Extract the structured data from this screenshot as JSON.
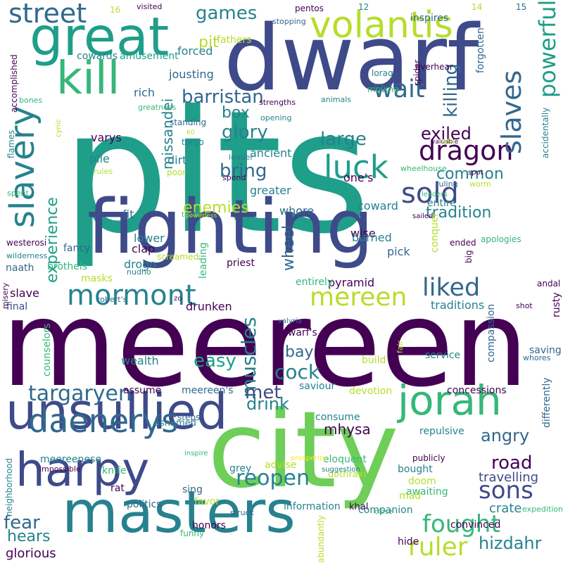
{
  "wordcloud": {
    "background": "#ffffff",
    "palette": [
      "#440154",
      "#3e4a89",
      "#31688e",
      "#26828e",
      "#1f9e89",
      "#35b779",
      "#6ece58",
      "#b5de2b",
      "#fde725"
    ],
    "words": [
      {
        "text": "pits",
        "color": "#1f9e89"
      },
      {
        "text": "meereen",
        "color": "#440154"
      },
      {
        "text": "dwarf",
        "color": "#3e4a89"
      },
      {
        "text": "fighting",
        "color": "#3e4a89"
      },
      {
        "text": "city",
        "color": "#6ece58"
      },
      {
        "text": "great",
        "color": "#1f9e89"
      },
      {
        "text": "masters",
        "color": "#26828e"
      },
      {
        "text": "unsullied",
        "color": "#3e4a89"
      },
      {
        "text": "harpy",
        "color": "#3e4a89"
      },
      {
        "text": "jorah",
        "color": "#35b779"
      },
      {
        "text": "kill",
        "color": "#35b779"
      },
      {
        "text": "slavery",
        "color": "#26828e"
      },
      {
        "text": "volantis",
        "color": "#b5de2b"
      },
      {
        "text": "daenerys",
        "color": "#31688e"
      },
      {
        "text": "mormont",
        "color": "#26828e"
      },
      {
        "text": "street",
        "color": "#31688e"
      },
      {
        "text": "luck",
        "color": "#1f9e89"
      },
      {
        "text": "sold",
        "color": "#3e4a89"
      },
      {
        "text": "dragon",
        "color": "#440154"
      },
      {
        "text": "slaves",
        "color": "#31688e"
      },
      {
        "text": "powerful",
        "color": "#1f9e89"
      },
      {
        "text": "wait",
        "color": "#31688e"
      },
      {
        "text": "mereen",
        "color": "#b5de2b"
      },
      {
        "text": "liked",
        "color": "#31688e"
      },
      {
        "text": "ruler",
        "color": "#b5de2b"
      },
      {
        "text": "fought",
        "color": "#35b779"
      },
      {
        "text": "sons",
        "color": "#3e4a89"
      },
      {
        "text": "targaryen",
        "color": "#31688e"
      },
      {
        "text": "muscles",
        "color": "#26828e"
      },
      {
        "text": "reopen",
        "color": "#26828e"
      },
      {
        "text": "barristan",
        "color": "#31688e"
      },
      {
        "text": "games",
        "color": "#26828e"
      },
      {
        "text": "killing",
        "color": "#31688e"
      },
      {
        "text": "exiled",
        "color": "#440154"
      },
      {
        "text": "glory",
        "color": "#26828e"
      },
      {
        "text": "large",
        "color": "#26828e"
      },
      {
        "text": "bring",
        "color": "#31688e"
      },
      {
        "text": "common",
        "color": "#26828e"
      },
      {
        "text": "tradition",
        "color": "#26828e"
      },
      {
        "text": "enemies",
        "color": "#b5de2b"
      },
      {
        "text": "missandei",
        "color": "#26828e"
      },
      {
        "text": "experience",
        "color": "#1f9e89"
      },
      {
        "text": "angry",
        "color": "#31688e"
      },
      {
        "text": "road",
        "color": "#440154"
      },
      {
        "text": "cock",
        "color": "#26828e"
      },
      {
        "text": "drink",
        "color": "#26828e"
      },
      {
        "text": "easy",
        "color": "#1f9e89"
      },
      {
        "text": "met",
        "color": "#3e4a89"
      },
      {
        "text": "fear",
        "color": "#31688e"
      },
      {
        "text": "hizdahr",
        "color": "#26828e"
      },
      {
        "text": "wheel",
        "color": "#31688e"
      },
      {
        "text": "box",
        "color": "#26828e"
      },
      {
        "text": "pit",
        "color": "#b5de2b"
      },
      {
        "text": "bay",
        "color": "#31688e"
      },
      {
        "text": "hears",
        "color": "#26828e"
      },
      {
        "text": "glorious",
        "color": "#440154"
      },
      {
        "text": "travelling",
        "color": "#3e4a89"
      },
      {
        "text": "crate",
        "color": "#26828e"
      },
      {
        "text": "mhysa",
        "color": "#440154"
      },
      {
        "text": "rich",
        "color": "#31688e"
      },
      {
        "text": "forced",
        "color": "#26828e"
      },
      {
        "text": "jousting",
        "color": "#31688e"
      },
      {
        "text": "cowards",
        "color": "#26828e"
      },
      {
        "text": "amusement",
        "color": "#1f9e89"
      },
      {
        "text": "fathers",
        "color": "#b5de2b"
      },
      {
        "text": "stopping",
        "color": "#31688e"
      },
      {
        "text": "inspires",
        "color": "#31688e"
      },
      {
        "text": "forgotten",
        "color": "#31688e"
      },
      {
        "text": "varys",
        "color": "#440154"
      },
      {
        "text": "pile",
        "color": "#26828e"
      },
      {
        "text": "ancient",
        "color": "#26828e"
      },
      {
        "text": "dirt",
        "color": "#26828e"
      },
      {
        "text": "one's",
        "color": "#440154"
      },
      {
        "text": "greater",
        "color": "#26828e"
      },
      {
        "text": "whore",
        "color": "#31688e"
      },
      {
        "text": "coward",
        "color": "#26828e"
      },
      {
        "text": "wise",
        "color": "#440154"
      },
      {
        "text": "entire",
        "color": "#26828e"
      },
      {
        "text": "conquer",
        "color": "#b5de2b"
      },
      {
        "text": "burned",
        "color": "#26828e"
      },
      {
        "text": "pick",
        "color": "#31688e"
      },
      {
        "text": "fit",
        "color": "#31688e"
      },
      {
        "text": "lower",
        "color": "#26828e"
      },
      {
        "text": "clap",
        "color": "#440154"
      },
      {
        "text": "drogo",
        "color": "#26828e"
      },
      {
        "text": "fancy",
        "color": "#31688e"
      },
      {
        "text": "brothels",
        "color": "#35b779"
      },
      {
        "text": "masks",
        "color": "#b5de2b"
      },
      {
        "text": "slave",
        "color": "#440154"
      },
      {
        "text": "pyramid",
        "color": "#440154"
      },
      {
        "text": "entirely",
        "color": "#35b779"
      },
      {
        "text": "traditions",
        "color": "#26828e"
      },
      {
        "text": "naath",
        "color": "#31688e"
      },
      {
        "text": "leading",
        "color": "#35b779"
      },
      {
        "text": "priest",
        "color": "#440154"
      },
      {
        "text": "final",
        "color": "#3e4a89"
      },
      {
        "text": "drunken",
        "color": "#440154"
      },
      {
        "text": "counselors",
        "color": "#35b779"
      },
      {
        "text": "wealth",
        "color": "#26828e"
      },
      {
        "text": "assume",
        "color": "#440154"
      },
      {
        "text": "meereen's",
        "color": "#31688e"
      },
      {
        "text": "dwarf's",
        "color": "#440154"
      },
      {
        "text": "saviour",
        "color": "#26828e"
      },
      {
        "text": "devotion",
        "color": "#b5de2b"
      },
      {
        "text": "concessions",
        "color": "#440154"
      },
      {
        "text": "service",
        "color": "#26828e"
      },
      {
        "text": "compassion",
        "color": "#31688e"
      },
      {
        "text": "build",
        "color": "#b5de2b"
      },
      {
        "text": "consume",
        "color": "#26828e"
      },
      {
        "text": "repulsive",
        "color": "#26828e"
      },
      {
        "text": "steps",
        "color": "#31688e"
      },
      {
        "text": "advise",
        "color": "#b5de2b"
      },
      {
        "text": "grey",
        "color": "#26828e"
      },
      {
        "text": "eloquent",
        "color": "#35b779"
      },
      {
        "text": "publicly",
        "color": "#440154"
      },
      {
        "text": "bought",
        "color": "#26828e"
      },
      {
        "text": "doom",
        "color": "#b5de2b"
      },
      {
        "text": "awaiting",
        "color": "#35b779"
      },
      {
        "text": "dothraki",
        "color": "#b5de2b"
      },
      {
        "text": "khal",
        "color": "#440154"
      },
      {
        "text": "companion",
        "color": "#26828e"
      },
      {
        "text": "mad",
        "color": "#b5de2b"
      },
      {
        "text": "hide",
        "color": "#440154"
      },
      {
        "text": "convinced",
        "color": "#440154"
      },
      {
        "text": "information",
        "color": "#26828e"
      },
      {
        "text": "sing",
        "color": "#31688e"
      },
      {
        "text": "favor",
        "color": "#b5de2b"
      },
      {
        "text": "honors",
        "color": "#440154"
      },
      {
        "text": "politics",
        "color": "#31688e"
      },
      {
        "text": "knife",
        "color": "#35b779"
      },
      {
        "text": "meereenese",
        "color": "#26828e"
      },
      {
        "text": "inspire",
        "color": "#35b779"
      },
      {
        "text": "rat",
        "color": "#440154"
      },
      {
        "text": "ashamed",
        "color": "#26828e"
      },
      {
        "text": "prosperity",
        "color": "#fde725"
      },
      {
        "text": "suggestion",
        "color": "#26828e"
      },
      {
        "text": "struck",
        "color": "#31688e"
      },
      {
        "text": "funny",
        "color": "#35b779"
      },
      {
        "text": "abundantly",
        "color": "#b5de2b"
      },
      {
        "text": "close",
        "color": "#35b779"
      },
      {
        "text": "expedition",
        "color": "#35b779"
      },
      {
        "text": "neighborhood",
        "color": "#26828e"
      },
      {
        "text": "impossible",
        "color": "#440154"
      },
      {
        "text": "differently",
        "color": "#31688e"
      },
      {
        "text": "rusty",
        "color": "#440154"
      },
      {
        "text": "saving",
        "color": "#31688e"
      },
      {
        "text": "whores",
        "color": "#31688e"
      },
      {
        "text": "shot",
        "color": "#440154"
      },
      {
        "text": "andal",
        "color": "#440154"
      },
      {
        "text": "apologies",
        "color": "#35b779"
      },
      {
        "text": "big",
        "color": "#440154"
      },
      {
        "text": "ended",
        "color": "#440154"
      },
      {
        "text": "sailed",
        "color": "#440154"
      },
      {
        "text": "wheelhouse",
        "color": "#35b779"
      },
      {
        "text": "worm",
        "color": "#b5de2b"
      },
      {
        "text": "accidentally",
        "color": "#26828e"
      },
      {
        "text": "valuable",
        "color": "#440154"
      },
      {
        "text": "win",
        "color": "#b5de2b"
      },
      {
        "text": "spot",
        "color": "#440154"
      },
      {
        "text": "ruling",
        "color": "#31688e"
      },
      {
        "text": "leaders",
        "color": "#35b779"
      },
      {
        "text": "moving",
        "color": "#35b779"
      },
      {
        "text": "loraq",
        "color": "#26828e"
      },
      {
        "text": "overhear",
        "color": "#440154"
      },
      {
        "text": "spider",
        "color": "#440154"
      },
      {
        "text": "animals",
        "color": "#26828e"
      },
      {
        "text": "strengths",
        "color": "#440154"
      },
      {
        "text": "opening",
        "color": "#26828e"
      },
      {
        "text": "leader",
        "color": "#26828e"
      },
      {
        "text": "spend",
        "color": "#440154"
      },
      {
        "text": "poor",
        "color": "#b5de2b"
      },
      {
        "text": "rules",
        "color": "#b5de2b"
      },
      {
        "text": "torgo",
        "color": "#26828e"
      },
      {
        "text": "standing",
        "color": "#31688e"
      },
      {
        "text": "greatness",
        "color": "#35b779"
      },
      {
        "text": "cynic",
        "color": "#b5de2b"
      },
      {
        "text": "bones",
        "color": "#35b779"
      },
      {
        "text": "flames",
        "color": "#26828e"
      },
      {
        "text": "accomplished",
        "color": "#440154"
      },
      {
        "text": "spent",
        "color": "#35b779"
      },
      {
        "text": "taverns",
        "color": "#35b779"
      },
      {
        "text": "powerless",
        "color": "#b5de2b"
      },
      {
        "text": "westerosi",
        "color": "#440154"
      },
      {
        "text": "wilderness",
        "color": "#26828e"
      },
      {
        "text": "nudho",
        "color": "#26828e"
      },
      {
        "text": "misery",
        "color": "#440154"
      },
      {
        "text": "robert's",
        "color": "#31688e"
      },
      {
        "text": "zo",
        "color": "#440154"
      },
      {
        "text": "valyria",
        "color": "#31688e"
      },
      {
        "text": "fair",
        "color": "#b5de2b"
      },
      {
        "text": "screamed",
        "color": "#b5de2b"
      },
      {
        "text": "visited",
        "color": "#440154"
      },
      {
        "text": "pentos",
        "color": "#440154"
      },
      {
        "text": "12",
        "color": "#26828e"
      },
      {
        "text": "14",
        "color": "#b5de2b"
      },
      {
        "text": "15",
        "color": "#31688e"
      },
      {
        "text": "16",
        "color": "#b5de2b"
      },
      {
        "text": "60",
        "color": "#b5de2b"
      }
    ]
  }
}
